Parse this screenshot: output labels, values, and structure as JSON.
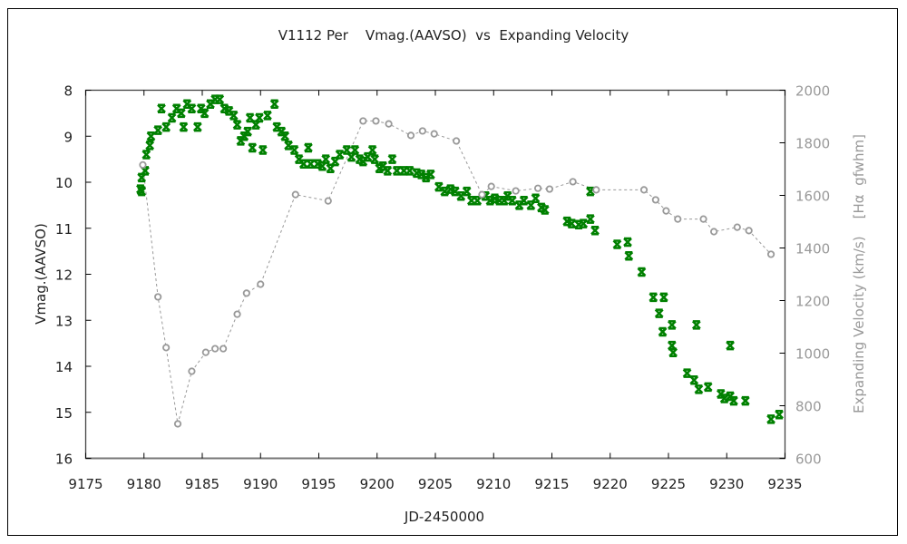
{
  "chart_data": {
    "type": "scatter",
    "title": "V1112 Per    Vmag.(AAVSO)  vs  Expanding Velocity",
    "xlabel": "JD-2450000",
    "ylabel": "Vmag.(AAVSO)",
    "y2label": "Expanding Velocity (km/s)    [Hα  gfwhm]",
    "xlim": [
      9175,
      9235
    ],
    "ylim": [
      16,
      8
    ],
    "y2lim": [
      600,
      2000
    ],
    "x_ticks": [
      "9175",
      "9180",
      "9185",
      "9190",
      "9195",
      "9200",
      "9205",
      "9210",
      "9215",
      "9220",
      "9225",
      "9230",
      "9235"
    ],
    "y_ticks": [
      "8",
      "9",
      "10",
      "11",
      "12",
      "13",
      "14",
      "15",
      "16"
    ],
    "y2_ticks": [
      "2000",
      "1800",
      "1600",
      "1400",
      "1200",
      "1000",
      "800",
      "600"
    ],
    "grid": false,
    "legend": "none",
    "colors": {
      "vmag": "#008000",
      "velocity": "#999999"
    },
    "series": [
      {
        "name": "Vmag (AAVSO)",
        "axis": "left",
        "marker": "x",
        "x": [
          9179.7,
          9179.8,
          9179.8,
          9180.1,
          9180.2,
          9180.5,
          9180.6,
          9181.2,
          9181.5,
          9181.9,
          9182.4,
          9182.8,
          9183.2,
          9183.4,
          9183.7,
          9184.1,
          9184.6,
          9184.9,
          9185.2,
          9185.7,
          9186.1,
          9186.5,
          9186.9,
          9187.3,
          9187.7,
          9188.0,
          9188.3,
          9188.6,
          9188.9,
          9189.1,
          9189.3,
          9189.6,
          9189.9,
          9190.2,
          9190.6,
          9191.2,
          9191.4,
          9191.8,
          9192.1,
          9192.4,
          9192.9,
          9193.3,
          9193.7,
          9194.1,
          9194.3,
          9194.9,
          9195.3,
          9195.6,
          9196.0,
          9196.4,
          9196.8,
          9197.4,
          9197.8,
          9198.1,
          9198.5,
          9198.8,
          9199.2,
          9199.6,
          9199.8,
          9200.2,
          9200.5,
          9200.9,
          9201.3,
          9201.7,
          9202.3,
          9202.8,
          9203.4,
          9203.8,
          9204.2,
          9204.6,
          9205.3,
          9205.8,
          9206.3,
          9206.7,
          9207.2,
          9207.7,
          9208.1,
          9208.6,
          9209.3,
          9209.7,
          9210.1,
          9210.5,
          9210.9,
          9211.2,
          9211.6,
          9212.2,
          9212.6,
          9213.2,
          9213.6,
          9214.1,
          9214.4,
          9216.3,
          9216.7,
          9217.3,
          9217.7,
          9218.3,
          9218.3,
          9218.7,
          9220.6,
          9221.5,
          9221.6,
          9222.7,
          9223.7,
          9224.6,
          9224.2,
          9224.5,
          9225.3,
          9225.3,
          9225.4,
          9227.4,
          9226.6,
          9227.2,
          9227.6,
          9228.4,
          9229.5,
          9229.8,
          9230.3,
          9230.6,
          9231.6,
          9230.3,
          9233.8,
          9234.5
        ],
        "y": [
          10.15,
          10.2,
          9.9,
          9.75,
          9.4,
          9.2,
          9.0,
          8.87,
          8.4,
          8.8,
          8.6,
          8.4,
          8.5,
          8.8,
          8.3,
          8.4,
          8.8,
          8.4,
          8.5,
          8.3,
          8.2,
          8.2,
          8.4,
          8.45,
          8.55,
          8.75,
          9.1,
          9.0,
          8.9,
          8.6,
          9.25,
          8.75,
          8.6,
          9.3,
          8.55,
          8.3,
          8.8,
          8.9,
          9.0,
          9.2,
          9.3,
          9.5,
          9.6,
          9.25,
          9.6,
          9.6,
          9.65,
          9.5,
          9.7,
          9.55,
          9.4,
          9.3,
          9.45,
          9.3,
          9.5,
          9.55,
          9.45,
          9.3,
          9.5,
          9.7,
          9.65,
          9.75,
          9.5,
          9.75,
          9.75,
          9.75,
          9.8,
          9.83,
          9.9,
          9.83,
          10.1,
          10.2,
          10.15,
          10.2,
          10.3,
          10.2,
          10.4,
          10.4,
          10.3,
          10.4,
          10.35,
          10.4,
          10.4,
          10.3,
          10.4,
          10.5,
          10.4,
          10.5,
          10.35,
          10.55,
          10.6,
          10.85,
          10.9,
          10.92,
          10.9,
          10.8,
          10.2,
          11.05,
          11.35,
          11.3,
          11.6,
          11.95,
          12.5,
          12.5,
          12.85,
          13.25,
          13.1,
          13.55,
          13.7,
          13.1,
          14.15,
          14.3,
          14.5,
          14.45,
          14.6,
          14.7,
          14.65,
          14.75,
          14.75,
          13.55,
          15.15,
          15.05
        ]
      },
      {
        "name": "Expanding Velocity (km/s)",
        "axis": "right",
        "marker": "o",
        "line": "dotted",
        "x": [
          9179.9,
          9181.2,
          9181.9,
          9182.9,
          9184.1,
          9185.3,
          9186.1,
          9186.8,
          9188.0,
          9188.8,
          9190.0,
          9193.0,
          9195.8,
          9198.8,
          9199.9,
          9201.0,
          9202.9,
          9203.9,
          9204.9,
          9206.8,
          9209.0,
          9209.8,
          9211.9,
          9213.8,
          9214.8,
          9216.8,
          9218.8,
          9222.9,
          9223.9,
          9224.8,
          9225.8,
          9228.0,
          9228.9,
          9230.9,
          9231.9,
          9233.8
        ],
        "y": [
          1716,
          1214,
          1021,
          731,
          931,
          1003,
          1017,
          1017,
          1148,
          1228,
          1262,
          1603,
          1579,
          1883,
          1883,
          1872,
          1828,
          1845,
          1834,
          1807,
          1603,
          1634,
          1617,
          1627,
          1624,
          1652,
          1621,
          1621,
          1583,
          1541,
          1510,
          1510,
          1462,
          1479,
          1466,
          1376
        ]
      }
    ]
  }
}
